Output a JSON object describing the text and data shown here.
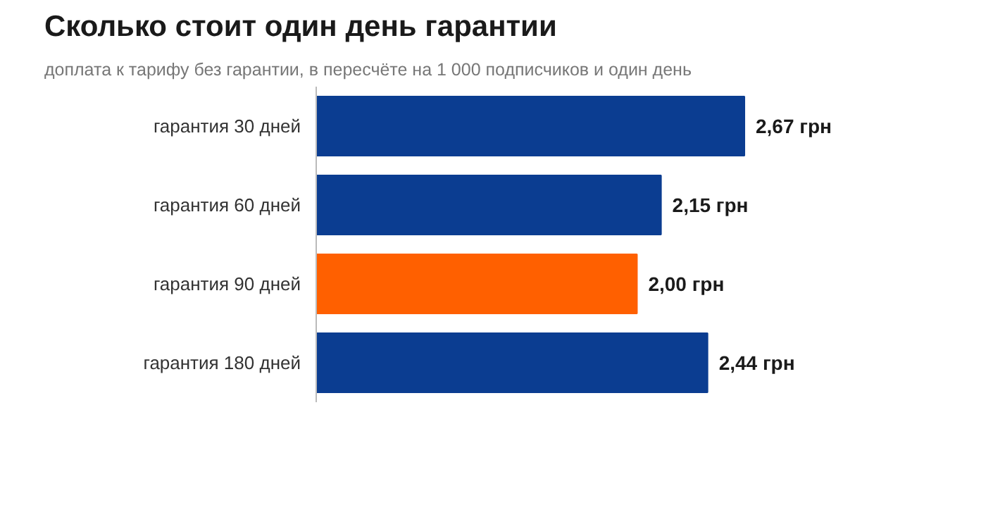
{
  "chart_data": {
    "type": "bar",
    "orientation": "horizontal",
    "title": "Сколько стоит один день гарантии",
    "subtitle": "доплата к тарифу без гарантии, в пересчёте на 1 000 подписчиков и один день",
    "categories": [
      "гарантия 30 дней",
      "гарантия 60 дней",
      "гарантия 90 дней",
      "гарантия 180 дней"
    ],
    "values": [
      2.67,
      2.15,
      2.0,
      2.44
    ],
    "colors": [
      "#0b3d91",
      "#0b3d91",
      "#ff6000",
      "#0b3d91"
    ],
    "value_labels": [
      "2,67 грн",
      "2,15 грн",
      "2,00 грн",
      "2,44 грн"
    ]
  }
}
